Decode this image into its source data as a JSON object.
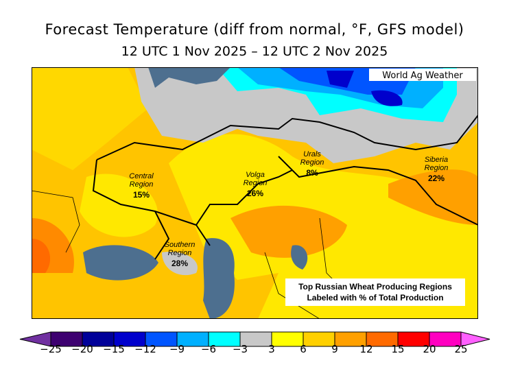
{
  "title": "Forecast Temperature (diff from normal, °F, GFS model)",
  "subtitle": "12 UTC 1 Nov 2025 – 12 UTC 2 Nov 2025",
  "brand": "World Ag Weather",
  "regions": [
    {
      "name": "Central",
      "label": "Central",
      "label2": "Region",
      "pct": "15%"
    },
    {
      "name": "Volga",
      "label": "Volga",
      "label2": "Region",
      "pct": "26%"
    },
    {
      "name": "Urals",
      "label": "Urals",
      "label2": "Region",
      "pct": "8%"
    },
    {
      "name": "Siberia",
      "label": "Siberia",
      "label2": "Region",
      "pct": "22%"
    },
    {
      "name": "Southern",
      "label": "Southern",
      "label2": "Region",
      "pct": "28%"
    }
  ],
  "note": {
    "line1": "Top Russian Wheat Producing Regions",
    "line2": "Labeled with % of Total Production"
  },
  "colorbar": {
    "ticks": [
      "−25",
      "−20",
      "−15",
      "−12",
      "−9",
      "−6",
      "−3",
      "3",
      "6",
      "9",
      "12",
      "15",
      "20",
      "25"
    ],
    "colors": [
      "#3d0070",
      "#000099",
      "#0000cc",
      "#0055ff",
      "#00b0ff",
      "#00ffff",
      "#c8c8c8",
      "#ffff00",
      "#ffd000",
      "#ffa000",
      "#ff6a00",
      "#ff0000",
      "#ff00c0"
    ],
    "under": "#7030a0",
    "over": "#ff60ff"
  }
}
